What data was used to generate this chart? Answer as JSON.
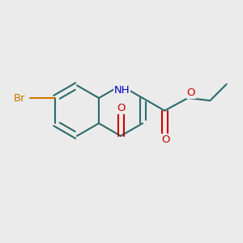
{
  "background_color": "#ebebeb",
  "bond_color": "#2d6b6b",
  "bond_width": 1.5,
  "atom_colors": {
    "N": "#0000cc",
    "O": "#cc0000",
    "Br": "#cc7700"
  },
  "font_size_atom": 9.5
}
